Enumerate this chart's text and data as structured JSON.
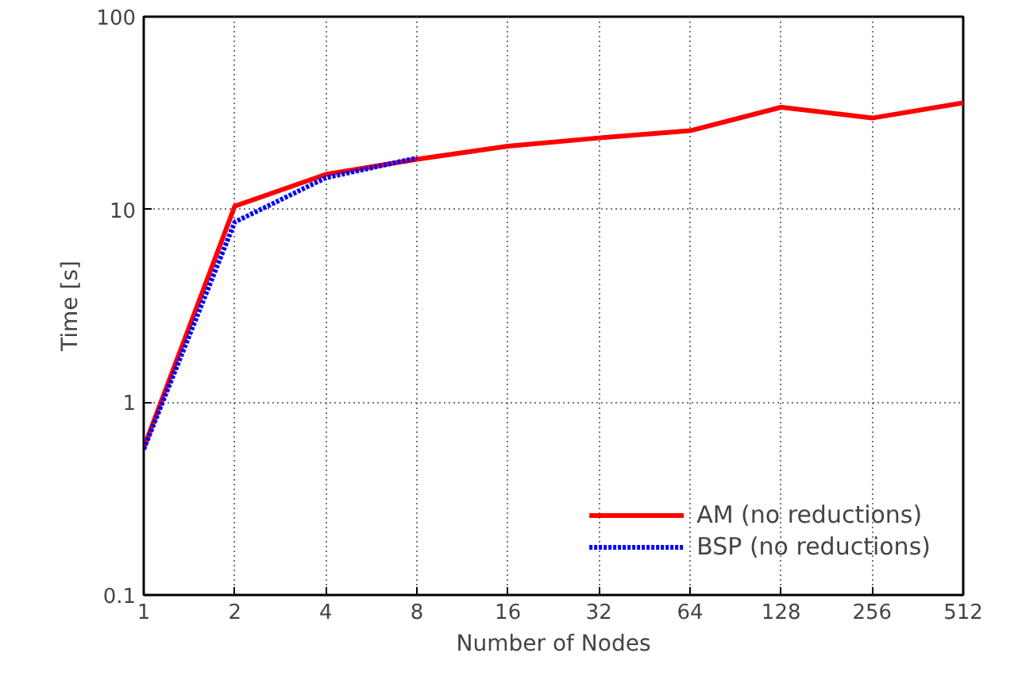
{
  "chart_data": {
    "type": "line",
    "xlabel": "Number of Nodes",
    "ylabel": "Time [s]",
    "x": [
      1,
      2,
      4,
      8,
      16,
      32,
      64,
      128,
      256,
      512
    ],
    "series": [
      {
        "name": "AM (no reductions)",
        "color": "#ff0000",
        "line_style": "solid",
        "values": [
          0.58,
          10.4,
          15.2,
          18.2,
          21.3,
          23.5,
          25.6,
          33.9,
          29.8,
          35.7
        ]
      },
      {
        "name": "BSP (no reductions)",
        "color": "#0000ff",
        "line_style": "dotted",
        "values": [
          0.57,
          8.6,
          14.6,
          18.5,
          null,
          null,
          null,
          null,
          null,
          null
        ]
      }
    ],
    "log": "xy",
    "xlim": [
      1,
      512
    ],
    "ylim": [
      0.1,
      100
    ],
    "xticks": [
      1,
      2,
      4,
      8,
      16,
      32,
      64,
      128,
      256,
      512
    ],
    "yticks": [
      0.1,
      1,
      10,
      100
    ],
    "grid": true,
    "legend": "bottom right",
    "marker": "none"
  }
}
